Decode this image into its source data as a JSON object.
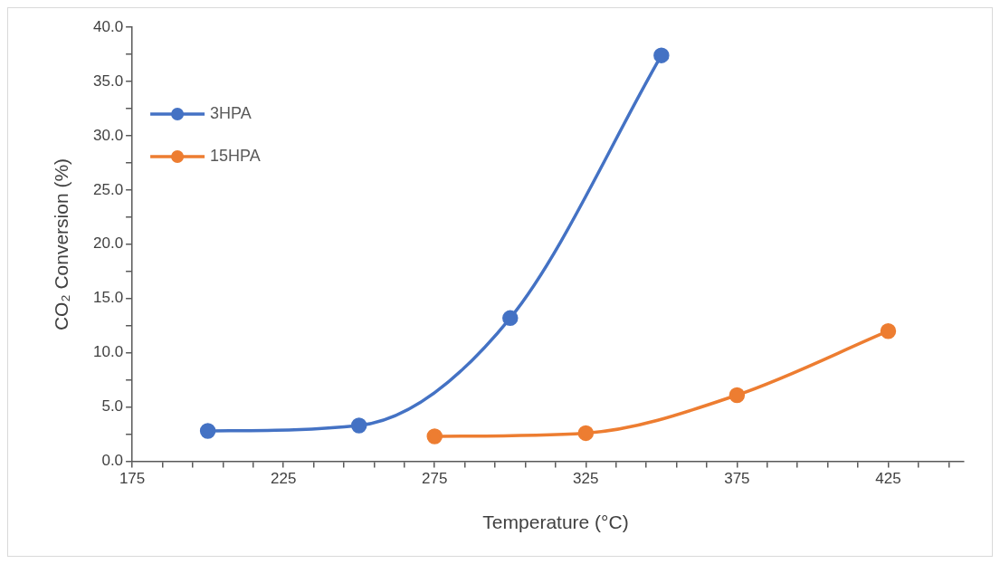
{
  "chart_data": {
    "type": "line",
    "xlabel": "Temperature (°C)",
    "ylabel": "CO₂ Conversion (%)",
    "xlim": [
      175,
      450
    ],
    "xticks": [
      175,
      {
        "value": 185,
        "label": null
      },
      {
        "value": 195,
        "label": null
      },
      {
        "value": 205,
        "label": null
      },
      {
        "value": 215,
        "label": null
      },
      225,
      {
        "value": 235,
        "label": null
      },
      {
        "value": 245,
        "label": null
      },
      {
        "value": 255,
        "label": null
      },
      {
        "value": 265,
        "label": null
      },
      275,
      {
        "value": 285,
        "label": null
      },
      {
        "value": 295,
        "label": null
      },
      {
        "value": 305,
        "label": null
      },
      {
        "value": 315,
        "label": null
      },
      325,
      {
        "value": 335,
        "label": null
      },
      {
        "value": 345,
        "label": null
      },
      {
        "value": 355,
        "label": null
      },
      {
        "value": 365,
        "label": null
      },
      375,
      {
        "value": 385,
        "label": null
      },
      {
        "value": 395,
        "label": null
      },
      {
        "value": 405,
        "label": null
      },
      {
        "value": 415,
        "label": null
      },
      425,
      {
        "value": 435,
        "label": null
      },
      {
        "value": 445,
        "label": null
      }
    ],
    "ylim": [
      0,
      40
    ],
    "yticks": [
      {
        "value": 0,
        "label": "0.0"
      },
      {
        "value": 2.5,
        "label": null
      },
      {
        "value": 5,
        "label": "5.0"
      },
      {
        "value": 7.5,
        "label": null
      },
      {
        "value": 10,
        "label": "10.0"
      },
      {
        "value": 12.5,
        "label": null
      },
      {
        "value": 15,
        "label": "15.0"
      },
      {
        "value": 17.5,
        "label": null
      },
      {
        "value": 20,
        "label": "20.0"
      },
      {
        "value": 22.5,
        "label": null
      },
      {
        "value": 25,
        "label": "25.0"
      },
      {
        "value": 27.5,
        "label": null
      },
      {
        "value": 30,
        "label": "30.0"
      },
      {
        "value": 32.5,
        "label": null
      },
      {
        "value": 35,
        "label": "35.0"
      },
      {
        "value": 37.5,
        "label": null
      },
      {
        "value": 40,
        "label": "40.0"
      }
    ],
    "grid": false,
    "legend": "top left",
    "marker": "circle",
    "line_style": "solid",
    "series": [
      {
        "name": "3HPA",
        "color": "#4472c4",
        "x": [
          200,
          250,
          300,
          350
        ],
        "values": [
          2.8,
          3.3,
          13.2,
          37.4
        ]
      },
      {
        "name": "15HPA",
        "color": "#ed7d31",
        "x": [
          275,
          325,
          375,
          425
        ],
        "values": [
          2.3,
          2.6,
          6.1,
          12.0
        ]
      }
    ]
  }
}
